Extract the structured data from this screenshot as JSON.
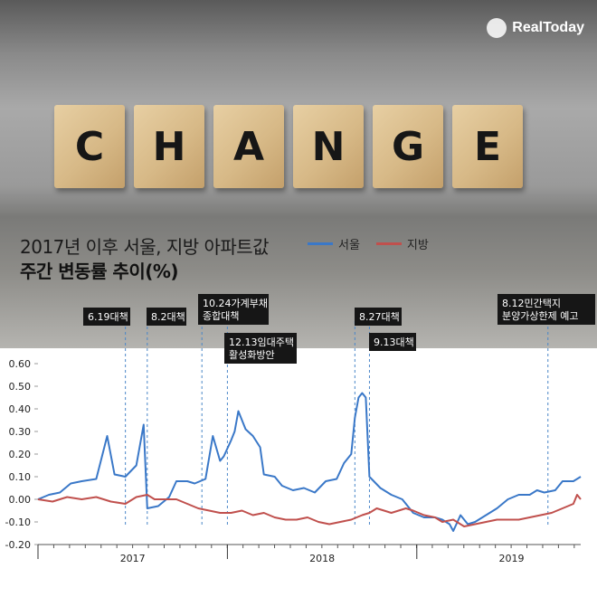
{
  "brand": {
    "name": "RealToday"
  },
  "hero": {
    "blocks": [
      "C",
      "H",
      "A",
      "N",
      "G",
      "E"
    ]
  },
  "title": {
    "line1": "2017년 이후 서울, 지방 아파트값",
    "line2": "주간 변동률 추이(%)"
  },
  "colors": {
    "seoul": "#3a78c8",
    "regional": "#c0504d",
    "annotation_bg": "#161616"
  },
  "chart_data": {
    "type": "line",
    "x_unit": "week index (weekly points, Jan 2017 to mid 2019)",
    "ylim": [
      -0.2,
      0.6
    ],
    "yticks": [
      "0.60",
      "0.50",
      "0.40",
      "0.30",
      "0.20",
      "0.10",
      "0.00",
      "-0.10",
      "-0.20"
    ],
    "year_labels": [
      {
        "label": "2017",
        "x": 26
      },
      {
        "label": "2018",
        "x": 78
      },
      {
        "label": "2019",
        "x": 130
      }
    ],
    "year_boundaries": [
      52,
      104
    ],
    "series": [
      {
        "name": "서울",
        "color": "#3a78c8",
        "points": [
          [
            0,
            0.0
          ],
          [
            3,
            0.02
          ],
          [
            6,
            0.03
          ],
          [
            9,
            0.07
          ],
          [
            12,
            0.08
          ],
          [
            16,
            0.09
          ],
          [
            19,
            0.28
          ],
          [
            21,
            0.11
          ],
          [
            24,
            0.1
          ],
          [
            27,
            0.15
          ],
          [
            29,
            0.33
          ],
          [
            30,
            -0.04
          ],
          [
            33,
            -0.03
          ],
          [
            36,
            0.01
          ],
          [
            38,
            0.08
          ],
          [
            41,
            0.08
          ],
          [
            43,
            0.07
          ],
          [
            46,
            0.09
          ],
          [
            48,
            0.28
          ],
          [
            50,
            0.17
          ],
          [
            51,
            0.19
          ],
          [
            53,
            0.26
          ],
          [
            54,
            0.3
          ],
          [
            55,
            0.39
          ],
          [
            57,
            0.31
          ],
          [
            59,
            0.28
          ],
          [
            61,
            0.23
          ],
          [
            62,
            0.11
          ],
          [
            65,
            0.1
          ],
          [
            67,
            0.06
          ],
          [
            70,
            0.04
          ],
          [
            73,
            0.05
          ],
          [
            76,
            0.03
          ],
          [
            79,
            0.08
          ],
          [
            82,
            0.09
          ],
          [
            84,
            0.16
          ],
          [
            86,
            0.2
          ],
          [
            87,
            0.36
          ],
          [
            88,
            0.45
          ],
          [
            89,
            0.47
          ],
          [
            90,
            0.45
          ],
          [
            91,
            0.1
          ],
          [
            94,
            0.05
          ],
          [
            97,
            0.02
          ],
          [
            100,
            0.0
          ],
          [
            103,
            -0.06
          ],
          [
            106,
            -0.08
          ],
          [
            109,
            -0.08
          ],
          [
            111,
            -0.09
          ],
          [
            113,
            -0.11
          ],
          [
            114,
            -0.14
          ],
          [
            116,
            -0.07
          ],
          [
            118,
            -0.11
          ],
          [
            120,
            -0.1
          ],
          [
            123,
            -0.07
          ],
          [
            126,
            -0.04
          ],
          [
            129,
            0.0
          ],
          [
            132,
            0.02
          ],
          [
            135,
            0.02
          ],
          [
            137,
            0.04
          ],
          [
            139,
            0.03
          ],
          [
            142,
            0.04
          ],
          [
            144,
            0.08
          ],
          [
            147,
            0.08
          ],
          [
            149,
            0.1
          ]
        ]
      },
      {
        "name": "지방",
        "color": "#c0504d",
        "points": [
          [
            0,
            0.0
          ],
          [
            4,
            -0.01
          ],
          [
            8,
            0.01
          ],
          [
            12,
            0.0
          ],
          [
            16,
            0.01
          ],
          [
            20,
            -0.01
          ],
          [
            24,
            -0.02
          ],
          [
            27,
            0.01
          ],
          [
            30,
            0.02
          ],
          [
            32,
            0.0
          ],
          [
            35,
            0.0
          ],
          [
            38,
            0.0
          ],
          [
            41,
            -0.02
          ],
          [
            44,
            -0.04
          ],
          [
            47,
            -0.05
          ],
          [
            50,
            -0.06
          ],
          [
            53,
            -0.06
          ],
          [
            56,
            -0.05
          ],
          [
            59,
            -0.07
          ],
          [
            62,
            -0.06
          ],
          [
            65,
            -0.08
          ],
          [
            68,
            -0.09
          ],
          [
            71,
            -0.09
          ],
          [
            74,
            -0.08
          ],
          [
            77,
            -0.1
          ],
          [
            80,
            -0.11
          ],
          [
            83,
            -0.1
          ],
          [
            86,
            -0.09
          ],
          [
            89,
            -0.07
          ],
          [
            91,
            -0.06
          ],
          [
            93,
            -0.04
          ],
          [
            95,
            -0.05
          ],
          [
            97,
            -0.06
          ],
          [
            99,
            -0.05
          ],
          [
            101,
            -0.04
          ],
          [
            103,
            -0.05
          ],
          [
            106,
            -0.07
          ],
          [
            109,
            -0.08
          ],
          [
            111,
            -0.1
          ],
          [
            114,
            -0.09
          ],
          [
            117,
            -0.12
          ],
          [
            120,
            -0.11
          ],
          [
            123,
            -0.1
          ],
          [
            126,
            -0.09
          ],
          [
            129,
            -0.09
          ],
          [
            132,
            -0.09
          ],
          [
            135,
            -0.08
          ],
          [
            138,
            -0.07
          ],
          [
            141,
            -0.06
          ],
          [
            144,
            -0.04
          ],
          [
            147,
            -0.02
          ],
          [
            148,
            0.02
          ],
          [
            149,
            0.0
          ]
        ]
      }
    ],
    "annotations": [
      {
        "lines": [
          "6.19대책"
        ],
        "x": 24
      },
      {
        "lines": [
          "8.2대책"
        ],
        "x": 30
      },
      {
        "lines": [
          "10.24가계부채",
          "종합대책"
        ],
        "x": 45
      },
      {
        "lines": [
          "12.13임대주택",
          "활성화방안"
        ],
        "x": 52
      },
      {
        "lines": [
          "8.27대책"
        ],
        "x": 87
      },
      {
        "lines": [
          "9.13대책"
        ],
        "x": 91
      },
      {
        "lines": [
          "8.12민간택지",
          "분양가상한제 예고"
        ],
        "x": 140
      }
    ]
  }
}
